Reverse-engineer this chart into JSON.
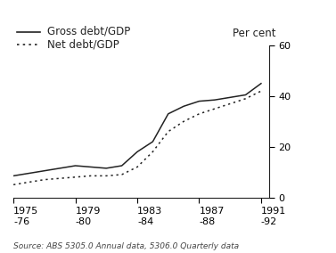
{
  "ylabel_right": "Per cent",
  "source_text": "Source: ABS 5305.0 Annual data, 5306.0 Quarterly data",
  "ylim": [
    0,
    60
  ],
  "yticks": [
    0,
    20,
    40,
    60
  ],
  "xtick_labels": [
    "1975\n-76",
    "1979\n-80",
    "1983\n-84",
    "1987\n-88",
    "1991\n-92"
  ],
  "xtick_positions": [
    1975,
    1979,
    1983,
    1987,
    1991
  ],
  "gross_years": [
    1975,
    1976,
    1977,
    1978,
    1979,
    1980,
    1981,
    1982,
    1983,
    1984,
    1985,
    1986,
    1987,
    1988,
    1989,
    1990,
    1991
  ],
  "gross_values": [
    8.5,
    9.5,
    10.5,
    11.5,
    12.5,
    12.0,
    11.5,
    12.5,
    18.0,
    22.0,
    33.0,
    36.0,
    38.0,
    38.5,
    39.5,
    40.5,
    45.0
  ],
  "net_years": [
    1975,
    1976,
    1977,
    1978,
    1979,
    1980,
    1981,
    1982,
    1983,
    1984,
    1985,
    1986,
    1987,
    1988,
    1989,
    1990,
    1991
  ],
  "net_values": [
    5.0,
    6.0,
    7.0,
    7.5,
    8.0,
    8.5,
    8.5,
    9.0,
    12.0,
    18.0,
    26.0,
    30.0,
    33.0,
    35.0,
    37.0,
    39.0,
    42.0
  ],
  "line_color": "#222222",
  "bg_color": "#ffffff",
  "legend_items": [
    "Gross debt/GDP",
    "Net debt/GDP"
  ],
  "legend_fontsize": 8.5,
  "tick_fontsize": 8.0,
  "source_fontsize": 6.5
}
